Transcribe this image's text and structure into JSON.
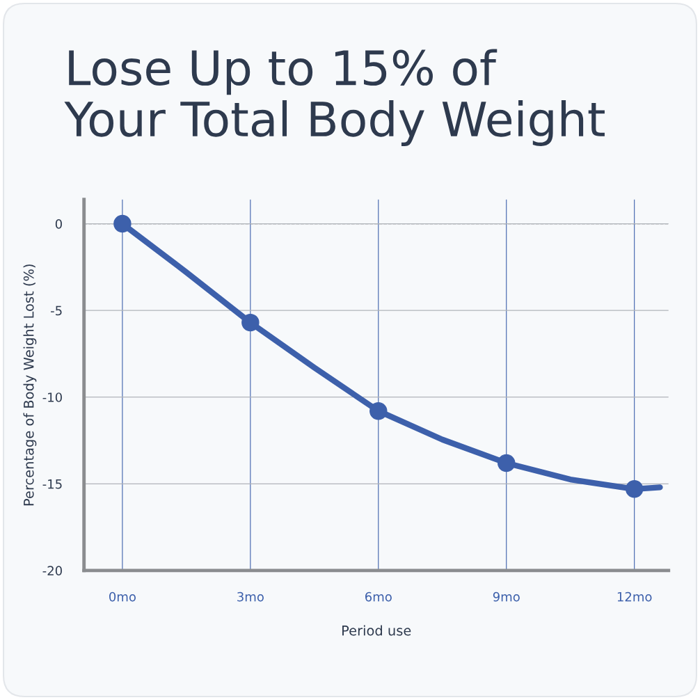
{
  "chart_data": {
    "type": "line",
    "title": "Lose Up to 15% of\nYour Total Body Weight",
    "xlabel": "Period use",
    "ylabel": "Percentage of Body Weight Lost (%)",
    "series": [
      {
        "color": "#3d60ab",
        "marker": "none",
        "x": [
          0,
          1.5,
          3,
          4.5,
          6,
          7.5,
          9,
          10.5,
          12,
          12.6
        ],
        "values": [
          0,
          -2.8,
          -5.7,
          -8.3,
          -10.8,
          -12.45,
          -13.8,
          -14.75,
          -15.3,
          -15.2
        ]
      },
      {
        "type": "scatter",
        "color": "#3d60ab",
        "marker": "circle",
        "x": [
          0,
          3,
          6,
          9,
          12
        ],
        "values": [
          0,
          -5.7,
          -10.8,
          -13.8,
          -15.3
        ]
      }
    ],
    "xlim": [
      -0.9,
      12.8
    ],
    "xticks": [
      {
        "value": 0,
        "label": "0mo"
      },
      {
        "value": 3,
        "label": "3mo"
      },
      {
        "value": 6,
        "label": "6mo"
      },
      {
        "value": 9,
        "label": "9mo"
      },
      {
        "value": 12,
        "label": "12mo"
      }
    ],
    "ylim": [
      -20,
      1.4
    ],
    "yticks": [
      {
        "value": -20,
        "label": "-20"
      },
      {
        "value": -15,
        "label": "-15"
      },
      {
        "value": -10,
        "label": "-10"
      },
      {
        "value": -5,
        "label": "-5"
      },
      0
    ],
    "ref_lines": [
      {
        "axis": "y",
        "value": 0,
        "color": "#777777",
        "line_style": "dashed"
      }
    ],
    "grid": true,
    "legend": false
  }
}
